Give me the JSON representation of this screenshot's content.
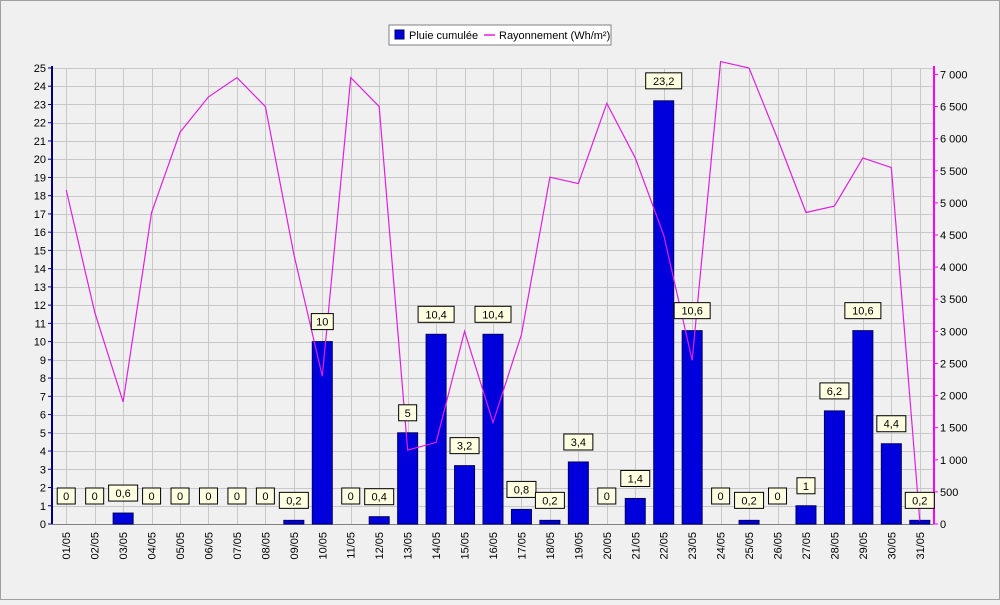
{
  "chart_data": {
    "type": "bar",
    "legend_position": "top-center",
    "grid": true,
    "colors": {
      "bar": "#0000dd",
      "line": "#e020e0",
      "label_bg": "#ffffe1"
    },
    "categories": [
      "01/05",
      "02/05",
      "03/05",
      "04/05",
      "05/05",
      "06/05",
      "07/05",
      "08/05",
      "09/05",
      "10/05",
      "11/05",
      "12/05",
      "13/05",
      "14/05",
      "15/05",
      "16/05",
      "17/05",
      "18/05",
      "19/05",
      "20/05",
      "21/05",
      "22/05",
      "23/05",
      "24/05",
      "25/05",
      "26/05",
      "27/05",
      "28/05",
      "29/05",
      "30/05",
      "31/05"
    ],
    "series": [
      {
        "name": "Pluie cumulée",
        "type": "bar",
        "axis": "left",
        "values": [
          0,
          0,
          0.6,
          0,
          0,
          0,
          0,
          0,
          0.2,
          10,
          0,
          0.4,
          5,
          10.4,
          3.2,
          10.4,
          0.8,
          0.2,
          3.4,
          0,
          1.4,
          23.2,
          10.6,
          0,
          0.2,
          0,
          1,
          6.2,
          10.6,
          4.4,
          0.2
        ],
        "labels": [
          "0",
          "0",
          "0,6",
          "0",
          "0",
          "0",
          "0",
          "0",
          "0,2",
          "10",
          "0",
          "0,4",
          "5",
          "10,4",
          "3,2",
          "10,4",
          "0,8",
          "0,2",
          "3,4",
          "0",
          "1,4",
          "23,2",
          "10,6",
          "0",
          "0,2",
          "0",
          "1",
          "6,2",
          "10,6",
          "4,4",
          "0,2"
        ]
      },
      {
        "name": "Rayonnement (Wh/m²)",
        "type": "line",
        "axis": "right",
        "values": [
          5200,
          3300,
          1900,
          4850,
          6100,
          6650,
          6950,
          6500,
          4200,
          2300,
          6950,
          6500,
          1150,
          1270,
          3000,
          1580,
          2950,
          5400,
          5300,
          6550,
          5700,
          4500,
          2550,
          7200,
          7100,
          6000,
          4850,
          4950,
          5700,
          5550,
          50
        ]
      }
    ],
    "y_left": {
      "min": 0,
      "max": 25,
      "ticks": [
        "0",
        "1",
        "2",
        "3",
        "4",
        "5",
        "6",
        "7",
        "8",
        "9",
        "10",
        "11",
        "12",
        "13",
        "14",
        "15",
        "16",
        "17",
        "18",
        "19",
        "20",
        "21",
        "22",
        "23",
        "24",
        "25"
      ]
    },
    "y_right": {
      "min": 0,
      "max": 7100,
      "ticks": [
        "0",
        "500",
        "1 000",
        "1 500",
        "2 000",
        "2 500",
        "3 000",
        "3 500",
        "4 000",
        "4 500",
        "5 000",
        "5 500",
        "6 000",
        "6 500",
        "7 000"
      ]
    }
  }
}
